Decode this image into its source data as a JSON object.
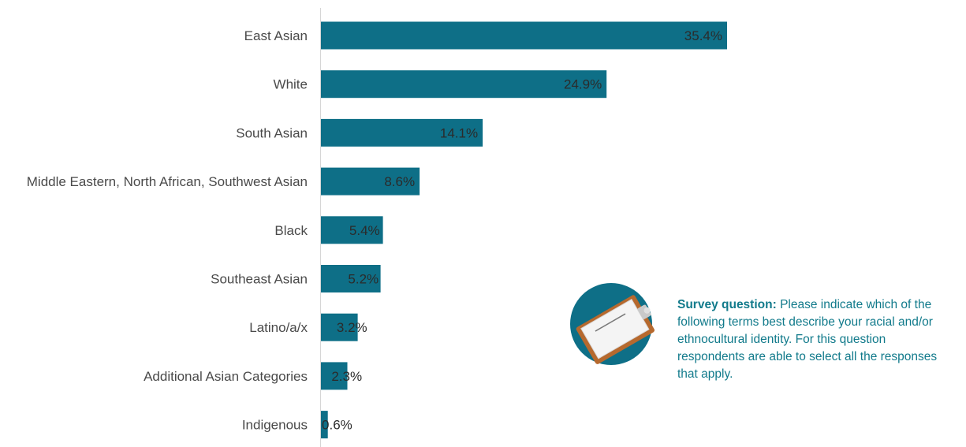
{
  "chart_data": {
    "type": "bar",
    "orientation": "horizontal",
    "categories": [
      "East Asian",
      "White",
      "South Asian",
      "Middle Eastern, North African, Southwest Asian",
      "Black",
      "Southeast Asian",
      "Latino/a/x",
      "Additional Asian Categories",
      "Indigenous"
    ],
    "values": [
      35.4,
      24.9,
      14.1,
      8.6,
      5.4,
      5.2,
      3.2,
      2.3,
      0.6
    ],
    "value_labels": [
      "35.4%",
      "24.9%",
      "14.1%",
      "8.6%",
      "5.4%",
      "5.2%",
      "3.2%",
      "2.3%",
      "0.6%"
    ],
    "bar_color": "#0e6f87",
    "xlim": [
      0,
      36
    ],
    "grid": false,
    "title": "",
    "xlabel": "",
    "ylabel": ""
  },
  "note": {
    "heading": "Survey question:",
    "lines": [
      "Please indicate which of the",
      "following terms best describe your racial and/or",
      "ethnocultural identity. For this question",
      "respondents are able to select all the responses",
      "that apply."
    ],
    "icon": "clipboard-icon",
    "text_color": "#117a8b",
    "circle_color": "#0e6f87"
  }
}
